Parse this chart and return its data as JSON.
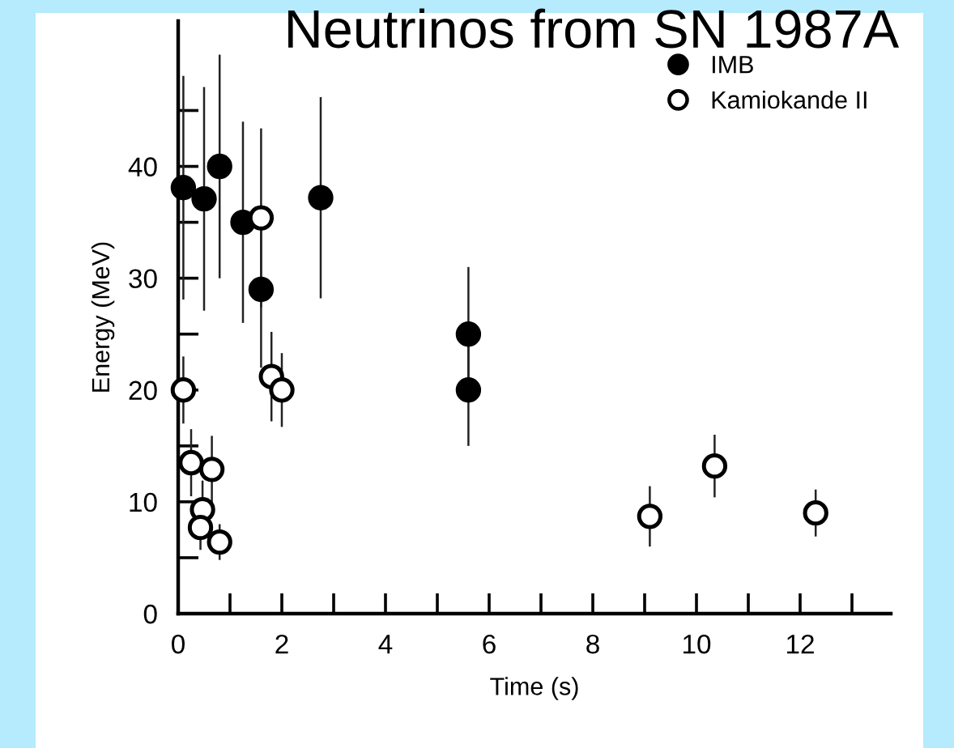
{
  "chart_data": {
    "type": "scatter",
    "title": "Neutrinos from SN 1987A",
    "xlabel": "Time (s)",
    "ylabel": "Energy (MeV)",
    "xlim": [
      0,
      13.75
    ],
    "ylim": [
      0,
      53
    ],
    "xticks": [
      0,
      {
        "value": 1,
        "label": null
      },
      2,
      {
        "value": 3,
        "label": null
      },
      4,
      {
        "value": 5,
        "label": null
      },
      6,
      {
        "value": 7,
        "label": null
      },
      8,
      {
        "value": 9,
        "label": null
      },
      10,
      {
        "value": 11,
        "label": null
      },
      12,
      {
        "value": 13,
        "label": null
      }
    ],
    "yticks": [
      0,
      {
        "value": 5,
        "label": null
      },
      10,
      {
        "value": 15,
        "label": null
      },
      20,
      {
        "value": 25,
        "label": null
      },
      30,
      {
        "value": 35,
        "label": null
      },
      40,
      {
        "value": 45,
        "label": null
      }
    ],
    "grid": false,
    "legend": "top right",
    "marker": "circle",
    "series": [
      {
        "name": "IMB",
        "color": "#000000",
        "x": [
          0.1,
          0.5,
          0.8,
          1.25,
          1.6,
          2.75,
          5.6,
          5.6
        ],
        "values": [
          38.1,
          37.1,
          40,
          35,
          29,
          37.2,
          25,
          20
        ],
        "errors": [
          10,
          10,
          10,
          9,
          7,
          9,
          6,
          5
        ]
      },
      {
        "name": "Kamiokande II",
        "color": "#ffffff",
        "x": [
          0.1,
          0.25,
          0.47,
          0.43,
          0.65,
          0.8,
          1.6,
          1.8,
          2.0,
          9.1,
          10.35,
          12.3
        ],
        "values": [
          20,
          13.5,
          9.3,
          7.7,
          12.9,
          6.4,
          35.4,
          21.2,
          20,
          8.7,
          13.2,
          9.0
        ],
        "errors": [
          3,
          3,
          2.6,
          2,
          3,
          1.6,
          8,
          4,
          3.3,
          2.7,
          2.8,
          2.1
        ]
      }
    ]
  }
}
